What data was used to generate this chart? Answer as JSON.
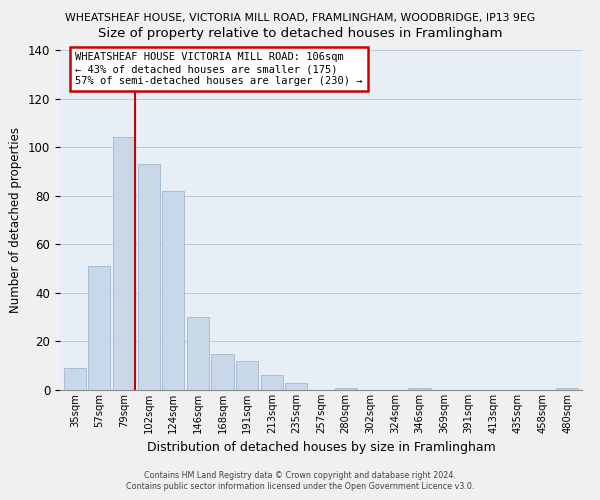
{
  "title_top": "WHEATSHEAF HOUSE, VICTORIA MILL ROAD, FRAMLINGHAM, WOODBRIDGE, IP13 9EG",
  "title_main": "Size of property relative to detached houses in Framlingham",
  "xlabel": "Distribution of detached houses by size in Framlingham",
  "ylabel": "Number of detached properties",
  "bar_labels": [
    "35sqm",
    "57sqm",
    "79sqm",
    "102sqm",
    "124sqm",
    "146sqm",
    "168sqm",
    "191sqm",
    "213sqm",
    "235sqm",
    "257sqm",
    "280sqm",
    "302sqm",
    "324sqm",
    "346sqm",
    "369sqm",
    "391sqm",
    "413sqm",
    "435sqm",
    "458sqm",
    "480sqm"
  ],
  "bar_values": [
    9,
    51,
    104,
    93,
    82,
    30,
    15,
    12,
    6,
    3,
    0,
    1,
    0,
    0,
    1,
    0,
    0,
    0,
    0,
    0,
    1
  ],
  "bar_color": "#c8d8e8",
  "bar_edge_color": "#a0b8d0",
  "vline_color": "#cc0000",
  "annotation_text": "WHEATSHEAF HOUSE VICTORIA MILL ROAD: 106sqm\n← 43% of detached houses are smaller (175)\n57% of semi-detached houses are larger (230) →",
  "annotation_box_edge": "#cc0000",
  "ylim": [
    0,
    140
  ],
  "yticks": [
    0,
    20,
    40,
    60,
    80,
    100,
    120,
    140
  ],
  "footer1": "Contains HM Land Registry data © Crown copyright and database right 2024.",
  "footer2": "Contains public sector information licensed under the Open Government Licence v3.0.",
  "background_color": "#f0f0f0",
  "plot_bg_color": "#e8eef5"
}
